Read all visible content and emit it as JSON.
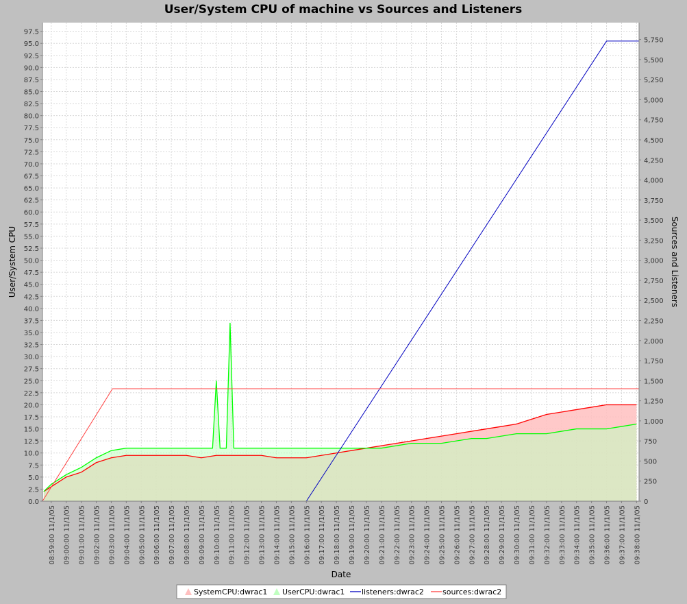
{
  "chart_data": {
    "type": "area",
    "title": "User/System CPU of machine vs Sources and Listeners",
    "xlabel": "Date",
    "ylabel": "User/System CPU",
    "y2label": "Sources and Listeners",
    "x_ticks": [
      "08:59:00 11/1/05",
      "09:00:00 11/1/05",
      "09:01:00 11/1/05",
      "09:02:00 11/1/05",
      "09:03:00 11/1/05",
      "09:04:00 11/1/05",
      "09:05:00 11/1/05",
      "09:06:00 11/1/05",
      "09:07:00 11/1/05",
      "09:08:00 11/1/05",
      "09:09:00 11/1/05",
      "09:10:00 11/1/05",
      "09:11:00 11/1/05",
      "09:12:00 11/1/05",
      "09:13:00 11/1/05",
      "09:14:00 11/1/05",
      "09:15:00 11/1/05",
      "09:16:00 11/1/05",
      "09:17:00 11/1/05",
      "09:18:00 11/1/05",
      "09:19:00 11/1/05",
      "09:20:00 11/1/05",
      "09:21:00 11/1/05",
      "09:22:00 11/1/05",
      "09:23:00 11/1/05",
      "09:24:00 11/1/05",
      "09:25:00 11/1/05",
      "09:26:00 11/1/05",
      "09:27:00 11/1/05",
      "09:28:00 11/1/05",
      "09:29:00 11/1/05",
      "09:30:00 11/1/05",
      "09:31:00 11/1/05",
      "09:32:00 11/1/05",
      "09:33:00 11/1/05",
      "09:34:00 11/1/05",
      "09:35:00 11/1/05",
      "09:36:00 11/1/05",
      "09:37:00 11/1/05",
      "09:38:00 11/1/05"
    ],
    "x_range": [
      "08:58:25",
      "09:38:10"
    ],
    "ylim": [
      0,
      99.3
    ],
    "y_ticks": [
      "0.0",
      "2.5",
      "5.0",
      "7.5",
      "10.0",
      "12.5",
      "15.0",
      "17.5",
      "20.0",
      "22.5",
      "25.0",
      "27.5",
      "30.0",
      "32.5",
      "35.0",
      "37.5",
      "40.0",
      "42.5",
      "45.0",
      "47.5",
      "50.0",
      "52.5",
      "55.0",
      "57.5",
      "60.0",
      "62.5",
      "65.0",
      "67.5",
      "70.0",
      "72.5",
      "75.0",
      "77.5",
      "80.0",
      "82.5",
      "85.0",
      "87.5",
      "90.0",
      "92.5",
      "95.0",
      "97.5"
    ],
    "y2lim": [
      0,
      5960
    ],
    "y2_ticks": [
      "0",
      "250",
      "500",
      "750",
      "1,000",
      "1,250",
      "1,500",
      "1,750",
      "2,000",
      "2,250",
      "2,500",
      "2,750",
      "3,000",
      "3,250",
      "3,500",
      "3,750",
      "4,000",
      "4,250",
      "4,500",
      "4,750",
      "5,000",
      "5,250",
      "5,500",
      "5,750"
    ],
    "grid": true,
    "legend_position": "bottom",
    "series": [
      {
        "name": "SystemCPU:dwrac1",
        "axis": "left",
        "render": "area",
        "color": "#ff0000",
        "fill": "#ffc0c0",
        "x": [
          "08:58:30",
          "08:59:00",
          "09:00:00",
          "09:01:00",
          "09:02:00",
          "09:03:00",
          "09:04:00",
          "09:05:00",
          "09:06:00",
          "09:07:00",
          "09:08:00",
          "09:09:00",
          "09:10:00",
          "09:11:00",
          "09:12:00",
          "09:13:00",
          "09:14:00",
          "09:15:00",
          "09:16:00",
          "09:17:00",
          "09:18:00",
          "09:19:00",
          "09:20:00",
          "09:21:00",
          "09:22:00",
          "09:23:00",
          "09:24:00",
          "09:25:00",
          "09:26:00",
          "09:27:00",
          "09:28:00",
          "09:29:00",
          "09:30:00",
          "09:31:00",
          "09:32:00",
          "09:33:00",
          "09:34:00",
          "09:35:00",
          "09:36:00",
          "09:37:00",
          "09:38:00"
        ],
        "values": [
          2,
          3,
          5,
          6,
          8,
          9,
          9.5,
          9.5,
          9.5,
          9.5,
          9.5,
          9,
          9.5,
          9.5,
          9.5,
          9.5,
          9,
          9,
          9,
          9.5,
          10,
          10.5,
          11,
          11.5,
          12,
          12.5,
          13,
          13.5,
          14,
          14.5,
          15,
          15.5,
          16,
          17,
          18,
          18.5,
          19,
          19.5,
          20,
          20,
          20
        ]
      },
      {
        "name": "UserCPU:dwrac1",
        "axis": "left",
        "render": "area",
        "color": "#00ff00",
        "fill": "#c0ffc0",
        "x": [
          "08:58:30",
          "08:59:00",
          "09:00:00",
          "09:01:00",
          "09:02:00",
          "09:03:00",
          "09:04:00",
          "09:05:00",
          "09:06:00",
          "09:07:00",
          "09:08:00",
          "09:09:00",
          "09:09:45",
          "09:10:00",
          "09:10:15",
          "09:10:40",
          "09:10:55",
          "09:11:10",
          "09:12:00",
          "09:13:00",
          "09:14:00",
          "09:15:00",
          "09:16:00",
          "09:17:00",
          "09:18:00",
          "09:19:00",
          "09:20:00",
          "09:21:00",
          "09:22:00",
          "09:23:00",
          "09:24:00",
          "09:25:00",
          "09:26:00",
          "09:27:00",
          "09:28:00",
          "09:29:00",
          "09:30:00",
          "09:31:00",
          "09:32:00",
          "09:33:00",
          "09:34:00",
          "09:35:00",
          "09:36:00",
          "09:37:00",
          "09:38:00"
        ],
        "values": [
          2,
          3.5,
          5.5,
          7,
          9,
          10.5,
          11,
          11,
          11,
          11,
          11,
          11,
          11,
          25,
          11,
          11,
          37,
          11,
          11,
          11,
          11,
          11,
          11,
          11,
          11,
          11,
          11,
          11,
          11.5,
          12,
          12,
          12,
          12.5,
          13,
          13,
          13.5,
          14,
          14,
          14,
          14.5,
          15,
          15,
          15,
          15.5,
          16
        ]
      },
      {
        "name": "listeners:dwrac2",
        "axis": "right",
        "render": "line",
        "color": "#0000c0",
        "x": [
          "08:58:25",
          "09:16:00",
          "09:36:00",
          "09:38:10"
        ],
        "values": [
          0,
          0,
          5730,
          5730
        ]
      },
      {
        "name": "sources:dwrac2",
        "axis": "right",
        "render": "line",
        "color": "#ff4040",
        "x": [
          "08:58:25",
          "09:03:05",
          "09:38:10"
        ],
        "values": [
          0,
          1400,
          1400
        ]
      }
    ]
  }
}
